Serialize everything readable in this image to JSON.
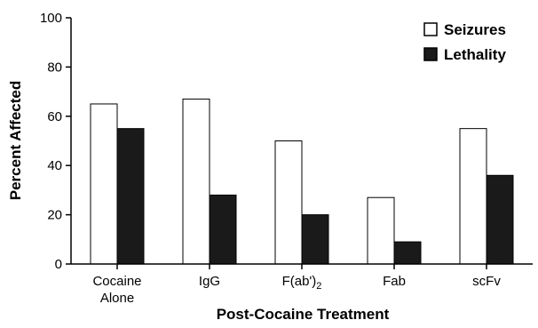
{
  "chart_data": {
    "type": "bar",
    "xlabel": "Post-Cocaine Treatment",
    "ylabel": "Percent Affected",
    "ylim": [
      0,
      100
    ],
    "yticks": [
      0,
      20,
      40,
      60,
      80,
      100
    ],
    "categories": [
      {
        "lines": [
          "Cocaine",
          "Alone"
        ]
      },
      {
        "lines": [
          "IgG"
        ]
      },
      {
        "lines": [
          "F(ab')2"
        ],
        "main": "F(ab')",
        "sub": "2"
      },
      {
        "lines": [
          "Fab"
        ]
      },
      {
        "lines": [
          "scFv"
        ]
      }
    ],
    "series": [
      {
        "name": "Seizures",
        "color": "#ffffff",
        "values": [
          65,
          67,
          50,
          27,
          55
        ]
      },
      {
        "name": "Lethality",
        "color": "#1a1a1a",
        "values": [
          55,
          28,
          20,
          9,
          36
        ]
      }
    ],
    "legend_position": "top-right",
    "grid": false
  }
}
